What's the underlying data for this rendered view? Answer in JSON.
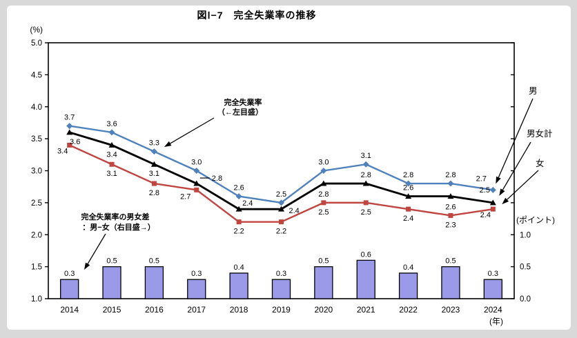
{
  "title": "図Ⅰ−7　完全失業率の推移",
  "axes": {
    "left_unit": "(%)",
    "right_unit": "(ポイント)",
    "x_unit": "(年)"
  },
  "annotations": {
    "rate_line1": "完全失業率",
    "rate_line2": "（←左目盛）",
    "gap_line1": "完全失業率の男女差",
    "gap_line2": "：男−女（右目盛→）"
  },
  "chart_data": {
    "type": "line+bar",
    "categories": [
      "2014",
      "2015",
      "2016",
      "2017",
      "2018",
      "2019",
      "2020",
      "2021",
      "2022",
      "2023",
      "2024"
    ],
    "left_axis": {
      "unit": "(%)",
      "min": 1.0,
      "max": 5.0,
      "tick_step": 0.5,
      "tick_labels": [
        "5.0",
        "4.5",
        "4.0",
        "3.5",
        "3.0",
        "2.5",
        "2.0",
        "1.5",
        "1.0"
      ]
    },
    "right_axis": {
      "unit": "(ポイント)",
      "min": 0.0,
      "labeled_ticks": [
        1.0,
        0.5,
        0.0
      ],
      "tick_labels": [
        "1.0",
        "0.5",
        "0.0"
      ]
    },
    "series": [
      {
        "key": "male",
        "name": "男",
        "type": "line",
        "axis": "left",
        "color": "#4f81bd",
        "marker": "diamond",
        "values": [
          3.7,
          3.6,
          3.3,
          3.0,
          2.6,
          2.5,
          3.0,
          3.1,
          2.8,
          2.8,
          2.7
        ]
      },
      {
        "key": "total",
        "name": "男女計",
        "type": "line",
        "axis": "left",
        "color": "#000000",
        "marker": "triangle",
        "values": [
          3.6,
          3.4,
          3.1,
          2.8,
          2.4,
          2.4,
          2.8,
          2.8,
          2.6,
          2.6,
          2.5
        ]
      },
      {
        "key": "female",
        "name": "女",
        "type": "line",
        "axis": "left",
        "color": "#c0443f",
        "marker": "square",
        "values": [
          3.4,
          3.1,
          2.8,
          2.7,
          2.2,
          2.2,
          2.5,
          2.5,
          2.4,
          2.3,
          2.4
        ]
      },
      {
        "key": "gap",
        "name": "男女差",
        "type": "bar",
        "axis": "right",
        "color": "#9a9ae8",
        "values": [
          0.3,
          0.5,
          0.5,
          0.3,
          0.4,
          0.3,
          0.5,
          0.6,
          0.4,
          0.5,
          0.3
        ]
      }
    ],
    "grid": false,
    "legend_position": "right-outside"
  }
}
